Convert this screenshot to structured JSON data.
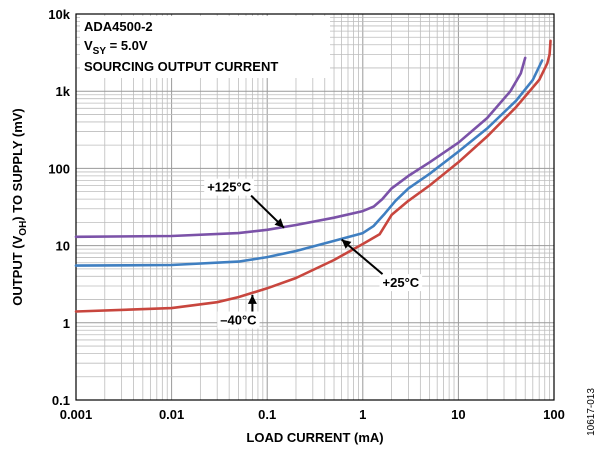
{
  "chart_data": {
    "type": "line",
    "x_scale": "log",
    "y_scale": "log",
    "xlim": [
      0.001,
      100
    ],
    "ylim": [
      0.1,
      10000
    ],
    "grid": true,
    "xlabel": "LOAD CURRENT (mA)",
    "ylabel_parts": {
      "main": "OUTPUT (V",
      "sub": "OH",
      "tail": ") TO SUPPLY (mV)"
    },
    "x_ticks": [
      {
        "value": 0.001,
        "label": "0.001"
      },
      {
        "value": 0.01,
        "label": "0.01"
      },
      {
        "value": 0.1,
        "label": "0.1"
      },
      {
        "value": 1,
        "label": "1"
      },
      {
        "value": 10,
        "label": "10"
      },
      {
        "value": 100,
        "label": "100"
      }
    ],
    "y_ticks": [
      {
        "value": 0.1,
        "label": "0.1"
      },
      {
        "value": 1,
        "label": "1"
      },
      {
        "value": 10,
        "label": "10"
      },
      {
        "value": 100,
        "label": "100"
      },
      {
        "value": 1000,
        "label": "1k"
      },
      {
        "value": 10000,
        "label": "10k"
      }
    ],
    "annotation_box": {
      "line1": "ADA4500-2",
      "line2_main": "V",
      "line2_sub": "SY",
      "line2_tail": " = 5.0V",
      "line3": "SOURCING OUTPUT CURRENT"
    },
    "series": [
      {
        "name": "+125°C",
        "color": "#7b52a8",
        "points": [
          [
            0.001,
            13
          ],
          [
            0.01,
            13.3
          ],
          [
            0.05,
            14.5
          ],
          [
            0.1,
            16
          ],
          [
            0.2,
            18.5
          ],
          [
            0.5,
            23
          ],
          [
            1,
            28
          ],
          [
            1.3,
            32
          ],
          [
            1.6,
            40
          ],
          [
            2,
            55
          ],
          [
            3,
            80
          ],
          [
            5,
            120
          ],
          [
            10,
            215
          ],
          [
            20,
            450
          ],
          [
            35,
            1000
          ],
          [
            45,
            1700
          ],
          [
            50,
            2700
          ]
        ]
      },
      {
        "name": "+25°C",
        "color": "#3f7fc1",
        "points": [
          [
            0.001,
            5.5
          ],
          [
            0.01,
            5.6
          ],
          [
            0.05,
            6.2
          ],
          [
            0.1,
            7.1
          ],
          [
            0.2,
            8.5
          ],
          [
            0.5,
            11.5
          ],
          [
            1,
            14.5
          ],
          [
            1.3,
            18
          ],
          [
            1.7,
            26
          ],
          [
            2.2,
            38
          ],
          [
            3,
            55
          ],
          [
            5,
            85
          ],
          [
            10,
            165
          ],
          [
            20,
            330
          ],
          [
            40,
            750
          ],
          [
            60,
            1400
          ],
          [
            75,
            2500
          ]
        ]
      },
      {
        "name": "–40°C",
        "color": "#c8463e",
        "points": [
          [
            0.001,
            1.4
          ],
          [
            0.01,
            1.55
          ],
          [
            0.03,
            1.85
          ],
          [
            0.05,
            2.15
          ],
          [
            0.1,
            2.8
          ],
          [
            0.2,
            3.8
          ],
          [
            0.5,
            6.5
          ],
          [
            1,
            10.5
          ],
          [
            1.5,
            14
          ],
          [
            2,
            25
          ],
          [
            3,
            38
          ],
          [
            5,
            60
          ],
          [
            10,
            120
          ],
          [
            20,
            260
          ],
          [
            40,
            620
          ],
          [
            70,
            1400
          ],
          [
            85,
            2300
          ],
          [
            90,
            3000
          ],
          [
            92,
            4500
          ]
        ]
      }
    ],
    "series_labels": [
      {
        "series": 0,
        "text": "+125°C",
        "at": [
          0.04,
          50
        ],
        "arrow_to": [
          0.15,
          17
        ]
      },
      {
        "series": 1,
        "text": "+25°C",
        "at": [
          2.5,
          2.9
        ],
        "arrow_to": [
          0.6,
          12
        ]
      },
      {
        "series": 2,
        "text": "–40°C",
        "at": [
          0.05,
          0.95
        ],
        "arrow_to": [
          0.07,
          2.3
        ]
      }
    ],
    "side_code": "10617-013"
  }
}
